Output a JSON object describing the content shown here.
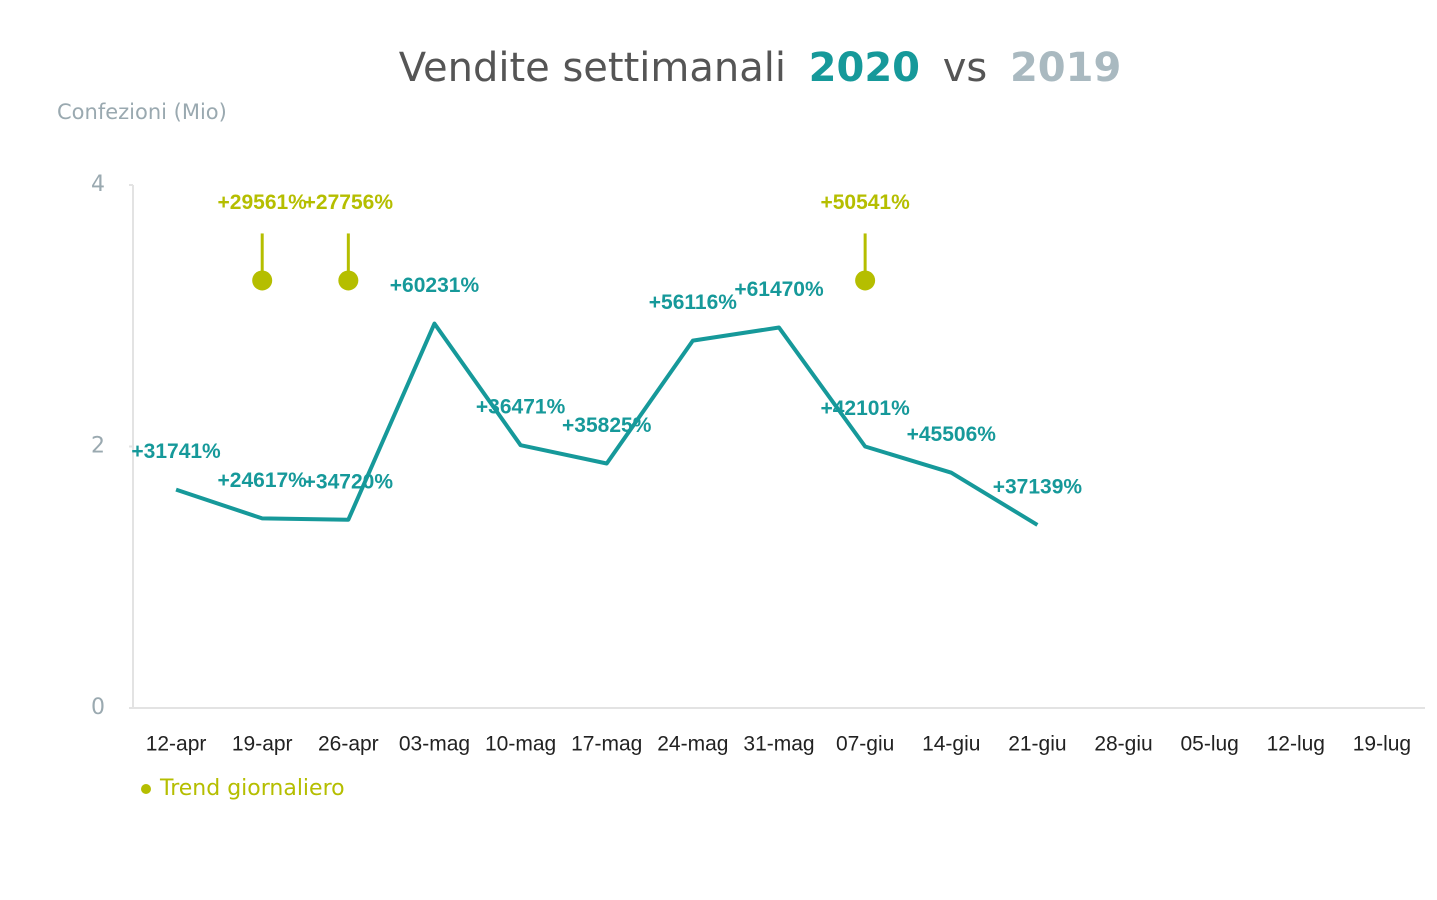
{
  "chart_data": {
    "type": "line",
    "title": [
      "Vendite settimanali",
      "2020",
      "vs",
      "2019"
    ],
    "title_colors": [
      "#555555",
      "#16999a",
      "#555555",
      "#a9b9c0"
    ],
    "y_label": "Confezioni (Mio)",
    "categories": [
      "12-apr",
      "19-apr",
      "26-apr",
      "03-mag",
      "10-mag",
      "17-mag",
      "24-mag",
      "31-mag",
      "07-giu",
      "14-giu",
      "21-giu",
      "28-giu",
      "05-lug",
      "12-lug",
      "19-lug"
    ],
    "ylim": [
      0,
      4
    ],
    "yticks": [
      0,
      2,
      4
    ],
    "series": [
      {
        "name": "2020",
        "color": "#16999a",
        "style": "line",
        "values": [
          1.67,
          1.45,
          1.44,
          2.94,
          2.01,
          1.87,
          2.81,
          2.91,
          2.0,
          1.8,
          1.4,
          null,
          null,
          null,
          null
        ],
        "annotations": [
          "+31741%",
          "+24617%",
          "+34720%",
          "+60231%",
          "+36471%",
          "+35825%",
          "+56116%",
          "+61470%",
          "+42101%",
          "+45506%",
          "+37139%",
          null,
          null,
          null,
          null
        ]
      },
      {
        "name": "Trend giornaliero",
        "color": "#b5be00",
        "style": "pin",
        "values": [
          null,
          3.27,
          3.27,
          null,
          null,
          null,
          null,
          null,
          3.27,
          null,
          null,
          null,
          null,
          null,
          null
        ],
        "annotations": [
          null,
          "+29561%",
          "+27756%",
          null,
          null,
          null,
          null,
          null,
          "+50541%",
          null,
          null,
          null,
          null,
          null,
          null
        ]
      }
    ],
    "legend": "bottom-left",
    "legend_series": 1
  }
}
